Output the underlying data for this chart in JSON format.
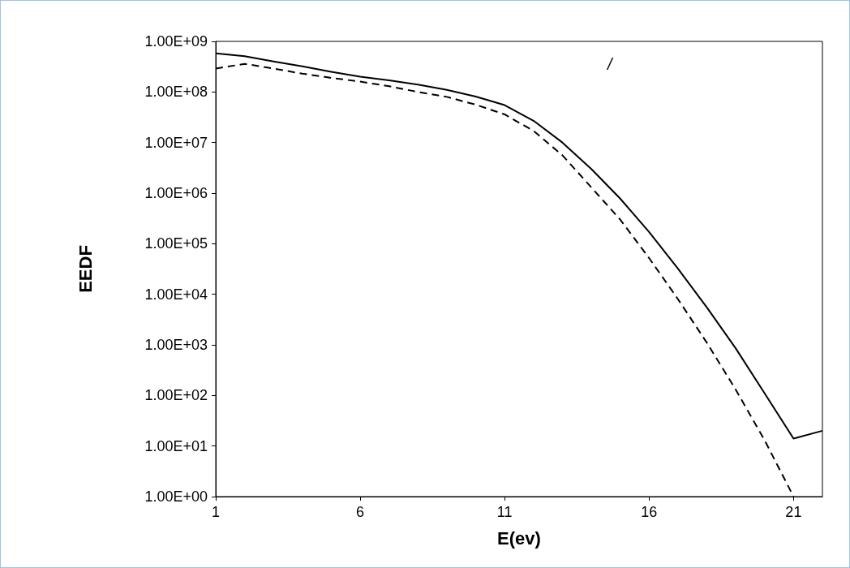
{
  "chart_data": {
    "type": "line",
    "xlabel": "E(ev)",
    "ylabel": "EEDF",
    "log": "y",
    "x": [
      1,
      2,
      3,
      4,
      5,
      6,
      7,
      8,
      9,
      10,
      11,
      12,
      13,
      14,
      15,
      16,
      17,
      18,
      19,
      20,
      21,
      22
    ],
    "series": [
      {
        "color": "#000000",
        "line_style": "solid",
        "values": [
          580000000,
          510000000,
          400000000,
          320000000,
          250000000,
          200000000,
          170000000,
          140000000,
          110000000,
          81000000,
          55000000,
          27000000,
          10000000,
          3000000,
          780000,
          170000,
          32000,
          5500,
          850,
          110,
          14,
          20
        ]
      },
      {
        "color": "#000000",
        "line_style": "dashed",
        "values": [
          290000000,
          360000000,
          290000000,
          230000000,
          190000000,
          160000000,
          130000000,
          100000000,
          80000000,
          56000000,
          36000000,
          17000000,
          5600000,
          1300000,
          300000,
          52000,
          8000,
          1100,
          130,
          13,
          1,
          null
        ]
      }
    ],
    "xlim": [
      1,
      22
    ],
    "xticks": [
      1,
      6,
      11,
      16,
      21
    ],
    "ylim": [
      1,
      1000000000
    ],
    "yticks": [
      {
        "value": 1,
        "label": "1.00E+00"
      },
      {
        "value": 10,
        "label": "1.00E+01"
      },
      {
        "value": 100,
        "label": "1.00E+02"
      },
      {
        "value": 1000,
        "label": "1.00E+03"
      },
      {
        "value": 10000,
        "label": "1.00E+04"
      },
      {
        "value": 100000,
        "label": "1.00E+05"
      },
      {
        "value": 1000000,
        "label": "1.00E+06"
      },
      {
        "value": 10000000,
        "label": "1.00E+07"
      },
      {
        "value": 100000000,
        "label": "1.00E+08"
      },
      {
        "value": 1000000000,
        "label": "1.00E+09"
      }
    ],
    "grid": false,
    "marker": "none",
    "annotations": [
      "/"
    ]
  }
}
